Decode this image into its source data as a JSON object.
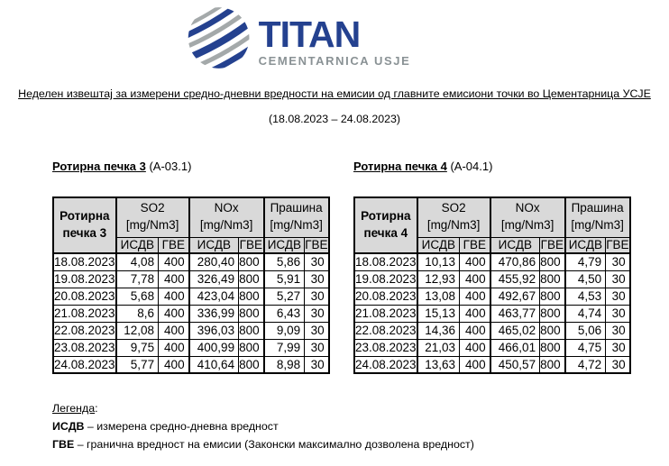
{
  "logo": {
    "brand": "TITAN",
    "subbrand": "CEMENTARNICA  USJE",
    "brand_color": "#24418F",
    "subbrand_color": "#8A9295",
    "globe_gray": "#A4A9AA",
    "globe_icon": "globe-striped-sphere"
  },
  "title": "Неделен извештај за измерени средно-дневни вредности на емисии од главните емисиони точки во Цементарница УСЈЕ",
  "period": "(18.08.2023 – 24.08.2023)",
  "table_header_bg": "#D9D9D9",
  "tables": [
    {
      "caption": "Ротирна печка 3",
      "caption_suffix": " (А-03.1)",
      "corner": "Ротирна\nпечка 3",
      "groups": [
        "SO2\n[mg/Nm3]",
        "NOx\n[mg/Nm3]",
        "Прашина\n[mg/Nm3]"
      ],
      "sub_headers": [
        "ИСДВ",
        "ГВЕ",
        "ИСДВ",
        "ГВЕ",
        "ИСДВ",
        "ГВЕ"
      ],
      "rows": [
        [
          "18.08.2023",
          "4,08",
          "400",
          "280,40",
          "800",
          "5,86",
          "30"
        ],
        [
          "19.08.2023",
          "7,78",
          "400",
          "326,49",
          "800",
          "5,91",
          "30"
        ],
        [
          "20.08.2023",
          "5,68",
          "400",
          "423,04",
          "800",
          "5,27",
          "30"
        ],
        [
          "21.08.2023",
          "8,6",
          "400",
          "336,99",
          "800",
          "6,43",
          "30"
        ],
        [
          "22.08.2023",
          "12,08",
          "400",
          "396,03",
          "800",
          "9,09",
          "30"
        ],
        [
          "23.08.2023",
          "9,75",
          "400",
          "400,99",
          "800",
          "7,99",
          "30"
        ],
        [
          "24.08.2023",
          "5,77",
          "400",
          "410,64",
          "800",
          "8,98",
          "30"
        ]
      ]
    },
    {
      "caption": "Ротирна печка 4",
      "caption_suffix": " (А-04.1)",
      "corner": "Ротирна\nпечка 4",
      "groups": [
        "SO2\n[mg/Nm3]",
        "NOx\n[mg/Nm3]",
        "Прашина\n[mg/Nm3]"
      ],
      "sub_headers": [
        "ИСДВ",
        "ГВЕ",
        "ИСДВ",
        "ГВЕ",
        "ИСДВ",
        "ГВЕ"
      ],
      "rows": [
        [
          "18.08.2023",
          "10,13",
          "400",
          "470,86",
          "800",
          "4,79",
          "30"
        ],
        [
          "19.08.2023",
          "12,93",
          "400",
          "455,92",
          "800",
          "4,50",
          "30"
        ],
        [
          "20.08.2023",
          "13,08",
          "400",
          "492,67",
          "800",
          "4,53",
          "30"
        ],
        [
          "21.08.2023",
          "15,13",
          "400",
          "463,77",
          "800",
          "4,74",
          "30"
        ],
        [
          "22.08.2023",
          "14,36",
          "400",
          "465,02",
          "800",
          "5,06",
          "30"
        ],
        [
          "23.08.2023",
          "21,03",
          "400",
          "466,01",
          "800",
          "4,75",
          "30"
        ],
        [
          "24.08.2023",
          "13,63",
          "400",
          "450,57",
          "800",
          "4,72",
          "30"
        ]
      ]
    }
  ],
  "legend": {
    "heading": "Легенда",
    "colon": ":",
    "items": [
      {
        "term": "ИСДВ",
        "text": " – измерена средно-дневна вредност"
      },
      {
        "term": "ГВЕ",
        "text": " – гранична вредност на емисии (Законски максимално дозволена вредност)"
      }
    ]
  }
}
